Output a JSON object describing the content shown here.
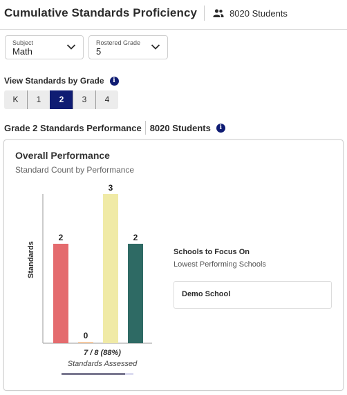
{
  "header": {
    "title": "Cumulative Standards Proficiency",
    "student_count": "8020 Students"
  },
  "filters": {
    "subject": {
      "label": "Subject",
      "value": "Math"
    },
    "grade": {
      "label": "Rostered Grade",
      "value": "5"
    }
  },
  "view_by_grade": {
    "label": "View Standards by Grade",
    "tabs": [
      "K",
      "1",
      "2",
      "3",
      "4"
    ],
    "active": "2"
  },
  "performance_heading": {
    "title": "Grade 2 Standards Performance",
    "student_count": "8020 Students"
  },
  "card": {
    "title": "Overall Performance",
    "subtitle": "Standard Count by Performance",
    "assessed_value": "7 / 8 (88%)",
    "assessed_label": "Standards Assessed",
    "assessed_fraction": 0.88
  },
  "chart_data": {
    "type": "bar",
    "categories": [
      "",
      "",
      "",
      ""
    ],
    "values": [
      2,
      0,
      3,
      2
    ],
    "colors": [
      "#e46b6e",
      "#f5c9a0",
      "#f0eaa6",
      "#2e6a64"
    ],
    "ylabel": "Standards",
    "xlabel": "",
    "ylim": [
      0,
      3
    ],
    "grid": false
  },
  "focus": {
    "title": "Schools to Focus On",
    "subtitle": "Lowest Performing Schools",
    "schools": [
      "Demo School"
    ]
  }
}
